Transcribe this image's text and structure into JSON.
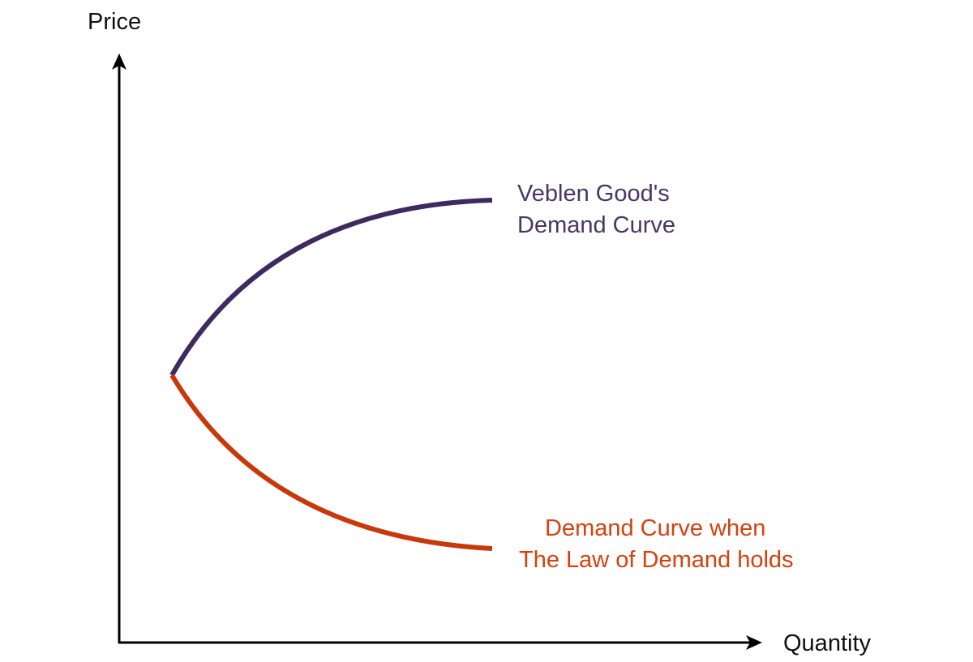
{
  "axes": {
    "y_label": "Price",
    "x_label": "Quantity"
  },
  "curves": [
    {
      "label_lines": [
        "Veblen Good's",
        "Demand Curve"
      ]
    },
    {
      "label_lines": [
        "Demand Curve when",
        "The Law of Demand holds"
      ]
    }
  ]
}
